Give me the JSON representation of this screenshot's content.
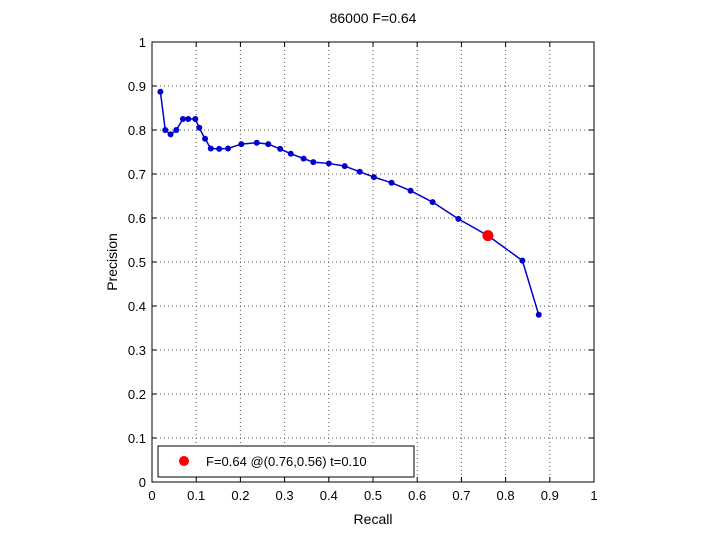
{
  "chart_data": {
    "type": "line",
    "title": "86000 F=0.64",
    "xlabel": "Recall",
    "ylabel": "Precision",
    "xlim": [
      0,
      1
    ],
    "ylim": [
      0,
      1
    ],
    "xticks": [
      "0",
      "0.1",
      "0.2",
      "0.3",
      "0.4",
      "0.5",
      "0.6",
      "0.7",
      "0.8",
      "0.9",
      "1"
    ],
    "yticks": [
      "0",
      "0.1",
      "0.2",
      "0.3",
      "0.4",
      "0.5",
      "0.6",
      "0.7",
      "0.8",
      "0.9",
      "1"
    ],
    "grid": true,
    "series": [
      {
        "color": "#0000cc",
        "points": [
          [
            0.019,
            0.887
          ],
          [
            0.03,
            0.8
          ],
          [
            0.042,
            0.79
          ],
          [
            0.055,
            0.8
          ],
          [
            0.07,
            0.825
          ],
          [
            0.082,
            0.825
          ],
          [
            0.098,
            0.825
          ],
          [
            0.107,
            0.805
          ],
          [
            0.12,
            0.78
          ],
          [
            0.133,
            0.758
          ],
          [
            0.152,
            0.757
          ],
          [
            0.172,
            0.758
          ],
          [
            0.202,
            0.768
          ],
          [
            0.237,
            0.771
          ],
          [
            0.263,
            0.768
          ],
          [
            0.29,
            0.757
          ],
          [
            0.314,
            0.746
          ],
          [
            0.343,
            0.735
          ],
          [
            0.365,
            0.727
          ],
          [
            0.4,
            0.724
          ],
          [
            0.436,
            0.718
          ],
          [
            0.47,
            0.705
          ],
          [
            0.502,
            0.693
          ],
          [
            0.542,
            0.68
          ],
          [
            0.585,
            0.662
          ],
          [
            0.635,
            0.636
          ],
          [
            0.693,
            0.598
          ],
          [
            0.76,
            0.56
          ],
          [
            0.838,
            0.503
          ],
          [
            0.875,
            0.38
          ]
        ]
      }
    ],
    "highlight": {
      "x": 0.76,
      "y": 0.56,
      "color": "#ff0000"
    },
    "legend": {
      "position": "bottom-left",
      "text": "F=0.64 @(0.76,0.56) t=0.10",
      "marker_color": "#ff0000"
    }
  }
}
